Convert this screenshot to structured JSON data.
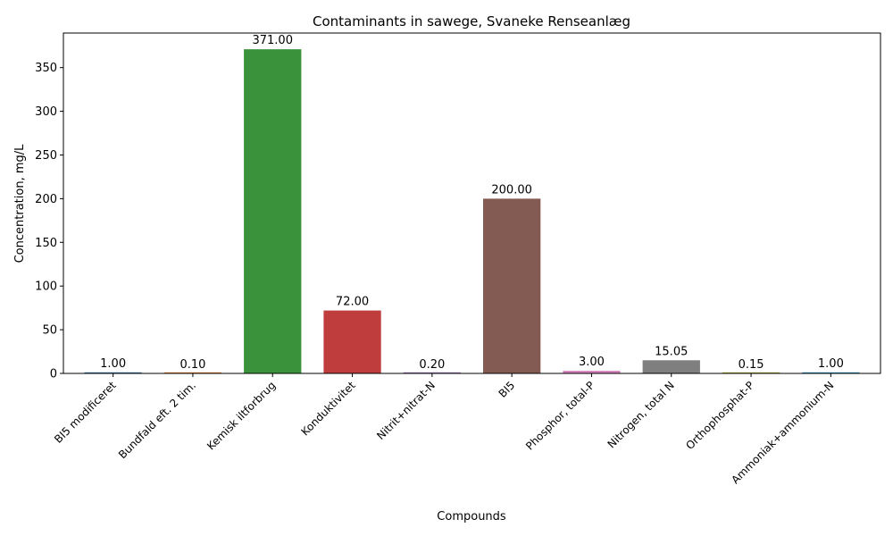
{
  "chart_data": {
    "type": "bar",
    "title": "Contaminants in sawege, Svaneke Renseanlæg",
    "xlabel": "Compounds",
    "ylabel": "Concentration, mg/L",
    "ylim": [
      0,
      389.55
    ],
    "yticks": [
      0,
      50,
      100,
      150,
      200,
      250,
      300,
      350
    ],
    "grid": false,
    "categories": [
      "BI5 modificeret",
      "Bundfald eft. 2 tim.",
      "Kemisk iltforbrug",
      "Konduktivitet",
      "Nitrit+nitrat-N",
      "BI5",
      "Phosphor, total-P",
      "Nitrogen, total N",
      "Orthophosphat-P",
      "Ammoniak+ammonium-N"
    ],
    "values": [
      1.0,
      0.1,
      371.0,
      72.0,
      0.2,
      200.0,
      3.0,
      15.05,
      0.15,
      1.0
    ],
    "value_labels": [
      "1.00",
      "0.10",
      "371.00",
      "72.00",
      "0.20",
      "200.00",
      "3.00",
      "15.05",
      "0.15",
      "1.00"
    ],
    "colors": [
      "#3274a1",
      "#e1812c",
      "#3a923a",
      "#c03d3e",
      "#9372b2",
      "#845b53",
      "#d684bd",
      "#7f7f7f",
      "#a9aa35",
      "#2e8ec0"
    ]
  }
}
